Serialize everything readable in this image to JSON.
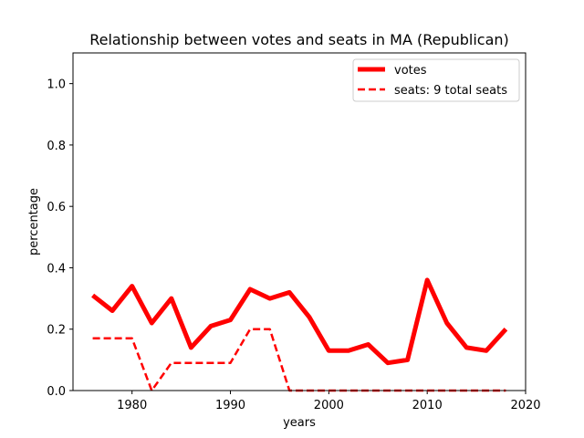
{
  "chart_data": {
    "type": "line",
    "title": "Relationship between votes and seats in MA (Republican)",
    "xlabel": "years",
    "ylabel": "percentage",
    "xlim": [
      1974,
      2020
    ],
    "ylim": [
      0.0,
      1.1
    ],
    "xticks": [
      1980,
      1990,
      2000,
      2010,
      2020
    ],
    "yticks": [
      "0.0",
      "0.2",
      "0.4",
      "0.6",
      "0.8",
      "1.0"
    ],
    "legend_position": "top-right",
    "grid": false,
    "series": [
      {
        "name": "votes",
        "color": "#ff0000",
        "style": "solid",
        "x": [
          1976,
          1978,
          1980,
          1982,
          1984,
          1986,
          1988,
          1990,
          1992,
          1994,
          1996,
          1998,
          2000,
          2002,
          2004,
          2006,
          2008,
          2010,
          2012,
          2014,
          2016,
          2018
        ],
        "y": [
          0.31,
          0.26,
          0.34,
          0.22,
          0.3,
          0.14,
          0.21,
          0.23,
          0.33,
          0.3,
          0.32,
          0.24,
          0.13,
          0.13,
          0.15,
          0.09,
          0.1,
          0.36,
          0.22,
          0.14,
          0.13,
          0.2
        ]
      },
      {
        "name": "seats: 9 total seats",
        "color": "#ff0000",
        "style": "dashed",
        "x": [
          1976,
          1978,
          1980,
          1982,
          1984,
          1986,
          1988,
          1990,
          1992,
          1994,
          1996,
          1998,
          2000,
          2002,
          2004,
          2006,
          2008,
          2010,
          2012,
          2014,
          2016,
          2018
        ],
        "y": [
          0.17,
          0.17,
          0.17,
          0.0,
          0.09,
          0.09,
          0.09,
          0.09,
          0.2,
          0.2,
          0.0,
          0.0,
          0.0,
          0.0,
          0.0,
          0.0,
          0.0,
          0.0,
          0.0,
          0.0,
          0.0,
          0.0
        ]
      }
    ]
  }
}
